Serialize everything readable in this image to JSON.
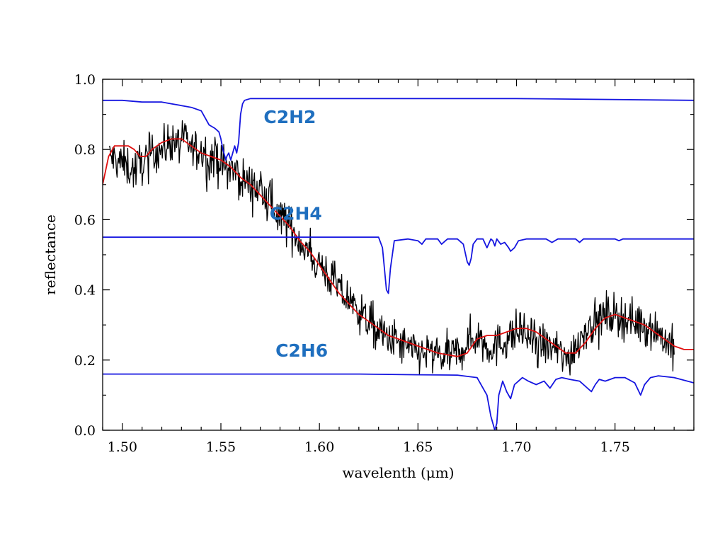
{
  "chart_data": {
    "type": "line",
    "title": "",
    "xlabel": "wavelenth (μm)",
    "ylabel": "reflectance",
    "xlim": [
      1.49,
      1.79
    ],
    "ylim": [
      0.0,
      1.0
    ],
    "grid": false,
    "legend": "none",
    "x_ticks": [
      {
        "value": 1.5,
        "label": "1.50"
      },
      {
        "value": 1.55,
        "label": "1.55"
      },
      {
        "value": 1.6,
        "label": "1.60"
      },
      {
        "value": 1.65,
        "label": "1.65"
      },
      {
        "value": 1.7,
        "label": "1.70"
      },
      {
        "value": 1.75,
        "label": "1.75"
      }
    ],
    "y_ticks": [
      {
        "value": 0.0,
        "label": "0.0"
      },
      {
        "value": 0.2,
        "label": "0.2"
      },
      {
        "value": 0.4,
        "label": "0.4"
      },
      {
        "value": 0.6,
        "label": "0.6"
      },
      {
        "value": 0.8,
        "label": "0.8"
      },
      {
        "value": 1.0,
        "label": "1.0"
      }
    ],
    "series": [
      {
        "kind": "observed-spectrum",
        "color": "#000000",
        "noise": 0.03,
        "x": [
          1.4935,
          1.4965,
          1.5,
          1.503,
          1.506,
          1.509,
          1.512,
          1.515,
          1.518,
          1.521,
          1.525,
          1.528,
          1.532,
          1.536,
          1.54,
          1.545,
          1.55,
          1.555,
          1.56,
          1.565,
          1.57,
          1.575,
          1.58,
          1.585,
          1.59,
          1.595,
          1.6,
          1.605,
          1.61,
          1.615,
          1.62,
          1.625,
          1.63,
          1.635,
          1.64,
          1.645,
          1.65,
          1.655,
          1.66,
          1.665,
          1.67,
          1.675,
          1.68,
          1.685,
          1.69,
          1.695,
          1.7,
          1.705,
          1.71,
          1.715,
          1.72,
          1.725,
          1.73,
          1.735,
          1.74,
          1.745,
          1.75,
          1.755,
          1.76,
          1.765,
          1.77,
          1.775,
          1.78
        ],
        "y": [
          0.78,
          0.77,
          0.76,
          0.75,
          0.74,
          0.76,
          0.77,
          0.79,
          0.8,
          0.8,
          0.83,
          0.82,
          0.82,
          0.8,
          0.79,
          0.78,
          0.76,
          0.74,
          0.72,
          0.7,
          0.68,
          0.65,
          0.61,
          0.58,
          0.54,
          0.5,
          0.47,
          0.44,
          0.4,
          0.37,
          0.34,
          0.31,
          0.28,
          0.26,
          0.25,
          0.23,
          0.22,
          0.22,
          0.21,
          0.21,
          0.22,
          0.25,
          0.27,
          0.24,
          0.24,
          0.26,
          0.28,
          0.27,
          0.25,
          0.24,
          0.23,
          0.2,
          0.24,
          0.29,
          0.31,
          0.33,
          0.33,
          0.32,
          0.31,
          0.3,
          0.29,
          0.26,
          0.23
        ]
      },
      {
        "kind": "model-fit",
        "color": "#e01010",
        "x": [
          1.49,
          1.493,
          1.496,
          1.5,
          1.503,
          1.506,
          1.509,
          1.512,
          1.515,
          1.52,
          1.525,
          1.53,
          1.535,
          1.54,
          1.545,
          1.55,
          1.555,
          1.56,
          1.565,
          1.57,
          1.575,
          1.58,
          1.585,
          1.59,
          1.595,
          1.6,
          1.605,
          1.61,
          1.615,
          1.62,
          1.625,
          1.63,
          1.635,
          1.64,
          1.645,
          1.65,
          1.655,
          1.66,
          1.665,
          1.67,
          1.675,
          1.68,
          1.685,
          1.69,
          1.695,
          1.7,
          1.705,
          1.71,
          1.715,
          1.72,
          1.725,
          1.73,
          1.735,
          1.74,
          1.745,
          1.75,
          1.755,
          1.76,
          1.765,
          1.77,
          1.775,
          1.78,
          1.785,
          1.79
        ],
        "y": [
          0.7,
          0.78,
          0.81,
          0.81,
          0.81,
          0.8,
          0.78,
          0.78,
          0.8,
          0.82,
          0.83,
          0.83,
          0.81,
          0.79,
          0.78,
          0.77,
          0.75,
          0.72,
          0.7,
          0.67,
          0.64,
          0.61,
          0.58,
          0.54,
          0.51,
          0.47,
          0.43,
          0.39,
          0.36,
          0.33,
          0.31,
          0.29,
          0.27,
          0.26,
          0.25,
          0.24,
          0.23,
          0.22,
          0.215,
          0.21,
          0.22,
          0.26,
          0.27,
          0.27,
          0.28,
          0.29,
          0.29,
          0.28,
          0.26,
          0.24,
          0.22,
          0.22,
          0.25,
          0.29,
          0.32,
          0.33,
          0.32,
          0.31,
          0.3,
          0.28,
          0.26,
          0.24,
          0.23,
          0.23
        ]
      },
      {
        "name": "C2H2",
        "color": "#1515e0",
        "x": [
          1.49,
          1.5,
          1.51,
          1.52,
          1.525,
          1.53,
          1.535,
          1.54,
          1.544,
          1.547,
          1.549,
          1.55,
          1.551,
          1.552,
          1.5525,
          1.553,
          1.554,
          1.555,
          1.556,
          1.557,
          1.558,
          1.559,
          1.56,
          1.561,
          1.562,
          1.565,
          1.57,
          1.58,
          1.6,
          1.7,
          1.79
        ],
        "y": [
          0.94,
          0.94,
          0.935,
          0.935,
          0.93,
          0.925,
          0.92,
          0.91,
          0.87,
          0.86,
          0.85,
          0.83,
          0.8,
          0.78,
          0.77,
          0.78,
          0.79,
          0.77,
          0.79,
          0.81,
          0.79,
          0.82,
          0.9,
          0.93,
          0.94,
          0.945,
          0.945,
          0.945,
          0.945,
          0.945,
          0.94
        ]
      },
      {
        "name": "C2H4",
        "color": "#1515e0",
        "x": [
          1.49,
          1.63,
          1.632,
          1.633,
          1.634,
          1.635,
          1.636,
          1.638,
          1.645,
          1.65,
          1.652,
          1.654,
          1.66,
          1.662,
          1.665,
          1.67,
          1.673,
          1.675,
          1.676,
          1.677,
          1.678,
          1.68,
          1.683,
          1.685,
          1.687,
          1.688,
          1.689,
          1.69,
          1.692,
          1.694,
          1.696,
          1.697,
          1.699,
          1.701,
          1.705,
          1.715,
          1.718,
          1.721,
          1.73,
          1.732,
          1.734,
          1.75,
          1.752,
          1.754,
          1.79
        ],
        "y": [
          0.55,
          0.55,
          0.52,
          0.46,
          0.4,
          0.39,
          0.46,
          0.54,
          0.545,
          0.54,
          0.53,
          0.545,
          0.545,
          0.53,
          0.545,
          0.545,
          0.53,
          0.48,
          0.47,
          0.49,
          0.53,
          0.545,
          0.545,
          0.52,
          0.545,
          0.54,
          0.525,
          0.545,
          0.53,
          0.535,
          0.52,
          0.51,
          0.52,
          0.54,
          0.545,
          0.545,
          0.535,
          0.545,
          0.545,
          0.535,
          0.545,
          0.545,
          0.54,
          0.545,
          0.545
        ]
      },
      {
        "name": "C2H6",
        "color": "#1515e0",
        "x": [
          1.49,
          1.52,
          1.55,
          1.58,
          1.62,
          1.65,
          1.67,
          1.68,
          1.685,
          1.687,
          1.689,
          1.69,
          1.691,
          1.693,
          1.695,
          1.697,
          1.699,
          1.701,
          1.703,
          1.706,
          1.71,
          1.714,
          1.717,
          1.72,
          1.723,
          1.727,
          1.732,
          1.736,
          1.738,
          1.74,
          1.742,
          1.745,
          1.75,
          1.755,
          1.76,
          1.763,
          1.765,
          1.768,
          1.772,
          1.78,
          1.79
        ],
        "y": [
          0.16,
          0.16,
          0.16,
          0.16,
          0.16,
          0.158,
          0.157,
          0.15,
          0.1,
          0.04,
          0.0,
          0.02,
          0.1,
          0.14,
          0.11,
          0.09,
          0.13,
          0.14,
          0.15,
          0.14,
          0.13,
          0.14,
          0.12,
          0.145,
          0.15,
          0.145,
          0.14,
          0.12,
          0.11,
          0.13,
          0.145,
          0.14,
          0.15,
          0.15,
          0.135,
          0.1,
          0.13,
          0.15,
          0.155,
          0.15,
          0.135
        ]
      }
    ],
    "annotations": [
      {
        "text": "C2H2",
        "x": 1.585,
        "y": 0.875,
        "color": "#1f6fbf"
      },
      {
        "text": "C2H4",
        "x": 1.588,
        "y": 0.6,
        "color": "#1f6fbf"
      },
      {
        "text": "C2H6",
        "x": 1.591,
        "y": 0.21,
        "color": "#1f6fbf"
      }
    ]
  }
}
